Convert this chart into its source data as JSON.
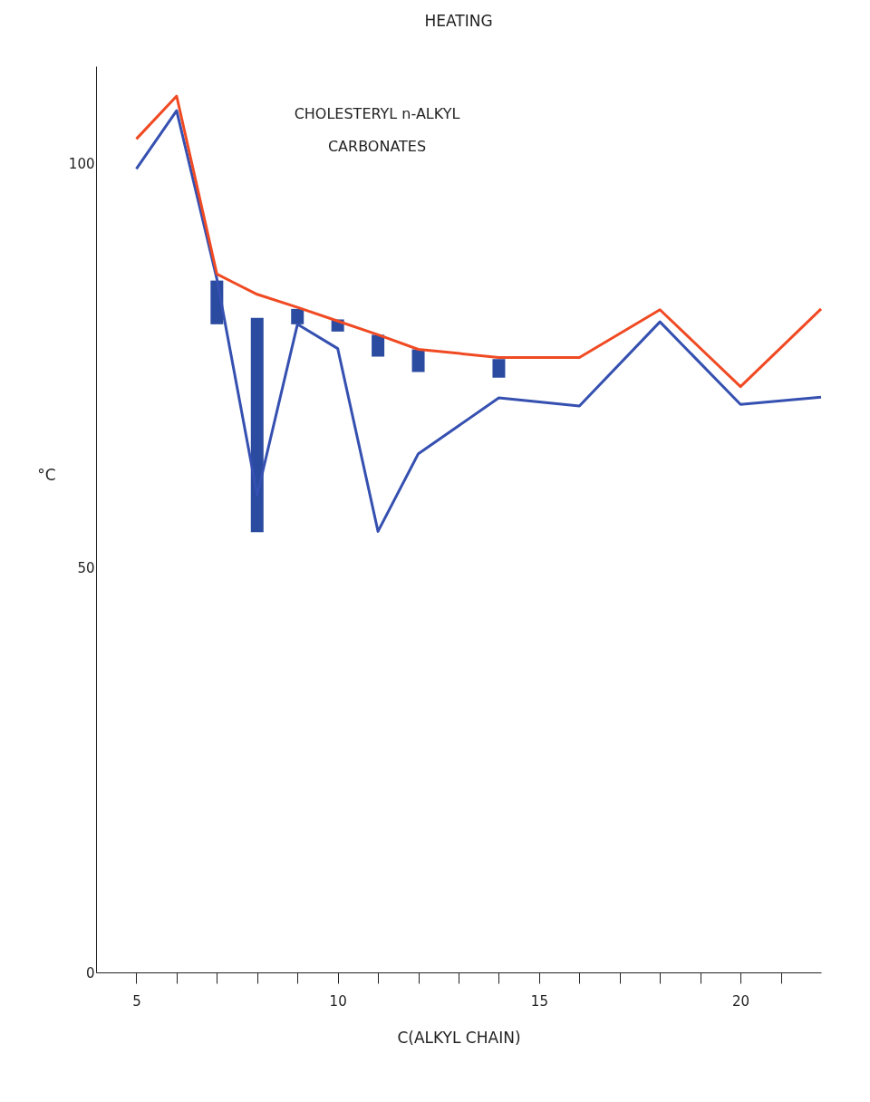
{
  "chart_data": {
    "type": "line",
    "title": "HEATING",
    "xlabel": "C(ALKYL CHAIN)",
    "ylabel": "°C",
    "annotations": [
      "CHOLESTERYL n-ALKYL\nCARBONATES"
    ],
    "xlim": [
      4,
      22
    ],
    "ylim": [
      0,
      112
    ],
    "xticks": [
      5,
      {
        "value": 6,
        "label": null
      },
      {
        "value": 7,
        "label": null
      },
      {
        "value": 8,
        "label": null
      },
      {
        "value": 9,
        "label": null
      },
      10,
      {
        "value": 11,
        "label": null
      },
      {
        "value": 12,
        "label": null
      },
      {
        "value": 13,
        "label": null
      },
      {
        "value": 14,
        "label": null
      },
      15,
      {
        "value": 16,
        "label": null
      },
      {
        "value": 17,
        "label": null
      },
      {
        "value": 18,
        "label": null
      },
      {
        "value": 19,
        "label": null
      },
      20,
      {
        "value": 21,
        "label": null
      }
    ],
    "yticks": [
      0,
      50,
      100
    ],
    "grid": false,
    "marker": "none",
    "line_style": "solid",
    "series": [
      {
        "type": "bar",
        "color": "#2a4ba0",
        "x": [
          7,
          8,
          9,
          10,
          11,
          12,
          14
        ],
        "base": [
          80.1,
          54.4,
          80.1,
          79.2,
          76.1,
          74.2,
          73.5
        ],
        "values": [
          5.4,
          26.5,
          1.9,
          1.5,
          2.7,
          2.8,
          2.3
        ]
      },
      {
        "color": "#3550b0",
        "x": [
          5,
          6,
          7,
          8,
          9,
          10,
          11,
          12,
          14,
          16,
          18,
          20,
          22
        ],
        "values": [
          99.3,
          106.5,
          85.7,
          59,
          80.1,
          77.1,
          54.5,
          64.1,
          71,
          70,
          80.4,
          70.2,
          71.1
        ]
      },
      {
        "color": "#f04a23",
        "x": [
          5,
          6,
          7,
          8,
          9,
          10,
          11,
          12,
          14,
          16,
          18,
          20,
          22
        ],
        "values": [
          103,
          108.3,
          86.3,
          83.8,
          82.2,
          80.5,
          78.8,
          77,
          76,
          76,
          81.9,
          72.4,
          82
        ]
      }
    ]
  }
}
